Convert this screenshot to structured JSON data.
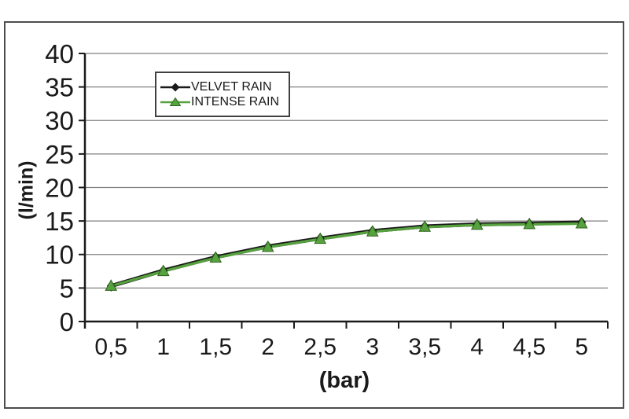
{
  "chart_data": {
    "type": "line",
    "title": "",
    "xlabel": "(bar)",
    "ylabel": "(l/min)",
    "categories": [
      "0,5",
      "1",
      "1,5",
      "2",
      "2,5",
      "3",
      "3,5",
      "4",
      "4,5",
      "5"
    ],
    "x_values": [
      0.5,
      1,
      1.5,
      2,
      2.5,
      3,
      3.5,
      4,
      4.5,
      5
    ],
    "ylim": [
      0,
      40
    ],
    "ytick_step": 5,
    "y_tick_labels": [
      "0",
      "5",
      "10",
      "15",
      "20",
      "25",
      "30",
      "35",
      "40"
    ],
    "grid": "horizontal",
    "decimal_separator": ",",
    "legend_position": "inside-top-left",
    "series": [
      {
        "name": "VELVET RAIN",
        "marker": "diamond",
        "color": "#1a1a1a",
        "values": [
          5.3,
          7.6,
          9.6,
          11.2,
          12.4,
          13.5,
          14.2,
          14.5,
          14.6,
          14.8
        ]
      },
      {
        "name": "INTENSE RAIN",
        "marker": "triangle",
        "color": "#56a23e",
        "marker_edge": "#2d641c",
        "values": [
          5.3,
          7.5,
          9.5,
          11.1,
          12.3,
          13.4,
          14.1,
          14.4,
          14.5,
          14.6
        ]
      }
    ]
  },
  "theme": {
    "background": "#ffffff",
    "frame_border_color": "#4d4d4d",
    "gridline_color": "#808080",
    "axis_color": "#1a1a1a",
    "text_color": "#1a1a1a",
    "legend_border_color": "#404040"
  }
}
